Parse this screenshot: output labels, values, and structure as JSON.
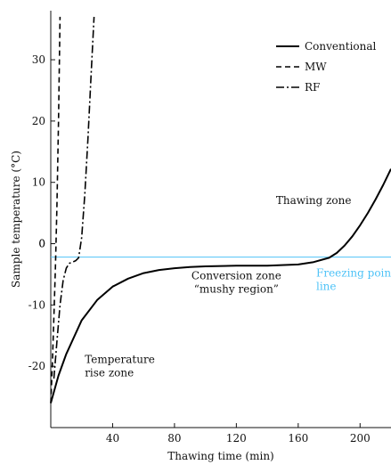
{
  "chart_data": {
    "type": "line",
    "xlabel": "Thawing time (min)",
    "ylabel": "Sample temperature (°C)",
    "xlim": [
      0,
      220
    ],
    "ylim": [
      -30,
      38
    ],
    "xticks": [
      40,
      80,
      120,
      160,
      200
    ],
    "yticks": [
      -20,
      -10,
      0,
      10,
      20,
      30
    ],
    "grid": false,
    "legend_position": "top-right",
    "series": [
      {
        "name": "Conventional",
        "style": "solid",
        "color": "#000000",
        "x": [
          0,
          5,
          10,
          20,
          30,
          40,
          50,
          60,
          70,
          80,
          90,
          100,
          120,
          140,
          160,
          170,
          180,
          185,
          190,
          195,
          200,
          205,
          210,
          215,
          220
        ],
        "y": [
          -26,
          -21.5,
          -18,
          -12.5,
          -9.2,
          -7,
          -5.7,
          -4.8,
          -4.3,
          -4.0,
          -3.8,
          -3.7,
          -3.6,
          -3.6,
          -3.4,
          -3.0,
          -2.3,
          -1.5,
          -0.3,
          1.2,
          3.0,
          5.0,
          7.2,
          9.6,
          12.2
        ]
      },
      {
        "name": "MW",
        "style": "dashed",
        "color": "#000000",
        "x": [
          0,
          1,
          2,
          3,
          4,
          5,
          6
        ],
        "y": [
          -26,
          -20,
          -12,
          -4,
          6,
          20,
          37
        ]
      },
      {
        "name": "RF",
        "style": "dashdot",
        "color": "#000000",
        "x": [
          2,
          4,
          6,
          8,
          10,
          12,
          14,
          16,
          18,
          20,
          22,
          24,
          26,
          28
        ],
        "y": [
          -22,
          -16,
          -10,
          -6,
          -4,
          -3.2,
          -3.0,
          -2.8,
          -2.3,
          1,
          8,
          17,
          27,
          37
        ]
      }
    ],
    "reference_line": {
      "y": -2.2,
      "color": "#4fc3f7",
      "label_line1": "Freezing point",
      "label_line2": "line"
    },
    "annotations": [
      {
        "lines": [
          "Temperature",
          "rise zone"
        ],
        "x": 22,
        "y": -19.5
      },
      {
        "lines": [
          "Conversion zone",
          "“mushy region”"
        ],
        "x": 120,
        "y": -5.8
      },
      {
        "lines": [
          "Thawing zone"
        ],
        "x": 170,
        "y": 6.5
      }
    ]
  }
}
